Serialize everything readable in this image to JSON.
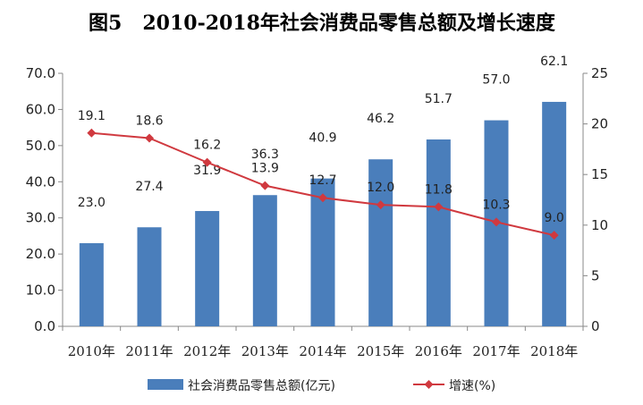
{
  "chart_data": {
    "type": "bar",
    "title": "图5   2010-2018年社会消费品零售总额及增长速度",
    "categories": [
      "2010年",
      "2011年",
      "2012年",
      "2013年",
      "2014年",
      "2015年",
      "2016年",
      "2017年",
      "2018年"
    ],
    "series": [
      {
        "name": "社会消费品零售总额(亿元)",
        "type": "bar",
        "axis": "left",
        "color": "#4a7ebb",
        "values": [
          23.0,
          27.4,
          31.9,
          36.3,
          40.9,
          46.2,
          51.7,
          57.0,
          62.1
        ],
        "labels": [
          "23.0",
          "27.4",
          "31.9",
          "36.3",
          "40.9",
          "46.2",
          "51.7",
          "57.0",
          "62.1"
        ]
      },
      {
        "name": "增速(%)",
        "type": "line",
        "axis": "right",
        "color": "#d0393f",
        "values": [
          19.1,
          18.6,
          16.2,
          13.9,
          12.7,
          12.0,
          11.8,
          10.3,
          9.0
        ],
        "labels": [
          "19.1",
          "18.6",
          "16.2",
          "13.9",
          "12.7",
          "12.0",
          "11.8",
          "10.3",
          "9.0"
        ]
      }
    ],
    "ylim_left": [
      0,
      70
    ],
    "yticks_left": [
      "0.0",
      "10.0",
      "20.0",
      "30.0",
      "40.0",
      "50.0",
      "60.0",
      "70.0"
    ],
    "ylim_right": [
      0,
      25
    ],
    "yticks_right": [
      "0",
      "5",
      "10",
      "15",
      "20",
      "25"
    ],
    "grid": false,
    "legend_position": "bottom"
  }
}
